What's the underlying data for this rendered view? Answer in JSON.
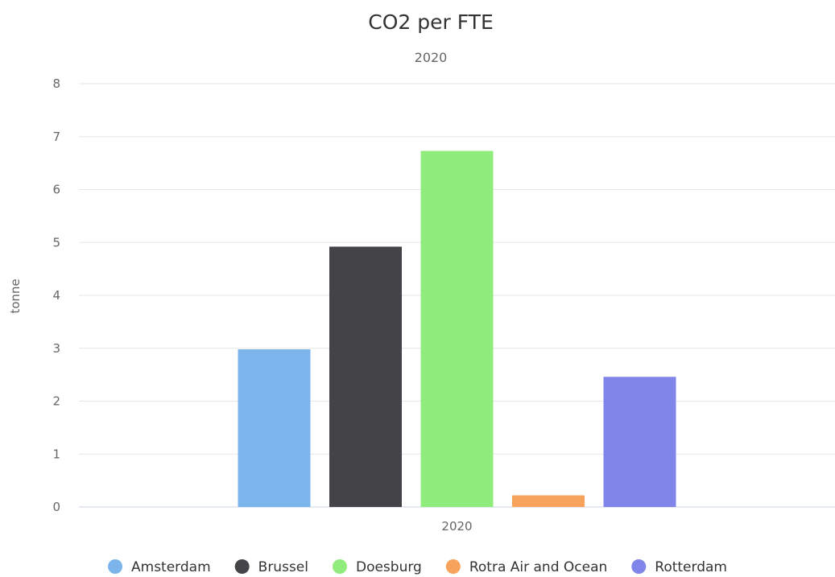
{
  "chart_data": {
    "type": "bar",
    "title": "CO2 per FTE",
    "subtitle": "2020",
    "ylabel": "tonne",
    "xlabel": "",
    "categories": [
      "2020"
    ],
    "series": [
      {
        "name": "Amsterdam",
        "values": [
          2.98
        ],
        "color": "#7cb5ec"
      },
      {
        "name": "Brussel",
        "values": [
          4.92
        ],
        "color": "#434348"
      },
      {
        "name": "Doesburg",
        "values": [
          6.73
        ],
        "color": "#90ed7d"
      },
      {
        "name": "Rotra Air and Ocean",
        "values": [
          0.22
        ],
        "color": "#f7a35c"
      },
      {
        "name": "Rotterdam",
        "values": [
          2.46
        ],
        "color": "#8085e9"
      }
    ],
    "ylim": [
      0,
      8
    ],
    "yticks": [
      "0",
      "1",
      "2",
      "3",
      "4",
      "5",
      "6",
      "7",
      "8"
    ],
    "grid": true,
    "legend_position": "bottom"
  }
}
